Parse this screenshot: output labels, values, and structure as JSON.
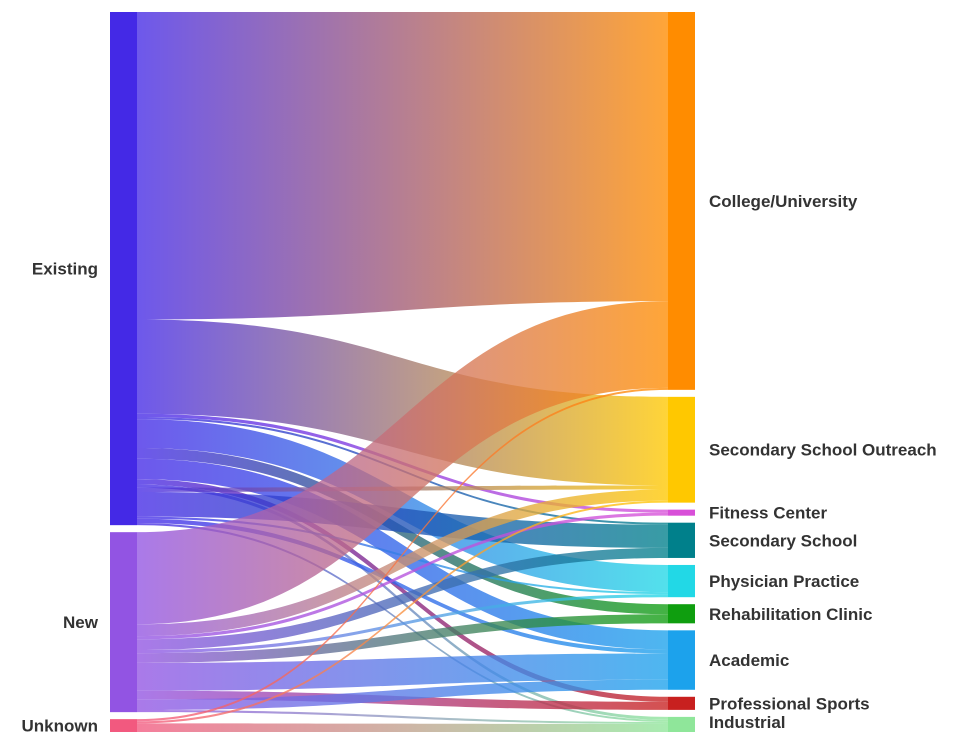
{
  "chart_data": {
    "type": "sankey",
    "sources": [
      {
        "name": "Existing",
        "color": "#4429e6"
      },
      {
        "name": "New",
        "color": "#9254e3"
      },
      {
        "name": "Unknown",
        "color": "#f2597f"
      }
    ],
    "targets": [
      {
        "name": "College/University",
        "color": "#ff8c00"
      },
      {
        "name": "Secondary School Outreach",
        "color": "#ffc800"
      },
      {
        "name": "Fitness Center",
        "color": "#d84fd8"
      },
      {
        "name": "Secondary School",
        "color": "#00808b"
      },
      {
        "name": "Physician Practice",
        "color": "#22d8e6"
      },
      {
        "name": "Rehabilitation Clinic",
        "color": "#0f9e0f"
      },
      {
        "name": "Academic",
        "color": "#1ca2ec"
      },
      {
        "name": "Professional Sports",
        "color": "#c8201f"
      },
      {
        "name": "Industrial",
        "color": "#8fe69a"
      }
    ],
    "links": [
      {
        "source": "Existing",
        "target": "College/University",
        "value": 287
      },
      {
        "source": "Existing",
        "target": "Secondary School Outreach",
        "value": 88
      },
      {
        "source": "Existing",
        "target": "Fitness Center",
        "value": 3
      },
      {
        "source": "Existing",
        "target": "Secondary School",
        "value": 2
      },
      {
        "source": "Existing",
        "target": "Physician Practice",
        "value": 27
      },
      {
        "source": "Existing",
        "target": "Rehabilitation Clinic",
        "value": 10
      },
      {
        "source": "Existing",
        "target": "Academic",
        "value": 19
      },
      {
        "source": "Existing",
        "target": "Professional Sports",
        "value": 5
      },
      {
        "source": "Existing",
        "target": "Industrial",
        "value": 3
      },
      {
        "source": "Existing",
        "target": "Secondary School Outreach",
        "value": 4
      },
      {
        "source": "Existing",
        "target": "Secondary School",
        "value": 23
      },
      {
        "source": "Existing",
        "target": "Physician Practice",
        "value": 2
      },
      {
        "source": "Existing",
        "target": "Academic",
        "value": 4
      },
      {
        "source": "Existing",
        "target": "Industrial",
        "value": 2
      },
      {
        "source": "New",
        "target": "College/University",
        "value": 86
      },
      {
        "source": "New",
        "target": "Secondary School Outreach",
        "value": 11
      },
      {
        "source": "New",
        "target": "Fitness Center",
        "value": 3
      },
      {
        "source": "New",
        "target": "Secondary School",
        "value": 10
      },
      {
        "source": "New",
        "target": "Physician Practice",
        "value": 3
      },
      {
        "source": "New",
        "target": "Rehabilitation Clinic",
        "value": 9
      },
      {
        "source": "New",
        "target": "Academic",
        "value": 26
      },
      {
        "source": "New",
        "target": "Professional Sports",
        "value": 8
      },
      {
        "source": "New",
        "target": "Academic",
        "value": 10
      },
      {
        "source": "New",
        "target": "Industrial",
        "value": 2
      },
      {
        "source": "Unknown",
        "target": "College/University",
        "value": 2
      },
      {
        "source": "Unknown",
        "target": "Secondary School Outreach",
        "value": 2
      },
      {
        "source": "Unknown",
        "target": "Industrial",
        "value": 8
      }
    ]
  }
}
